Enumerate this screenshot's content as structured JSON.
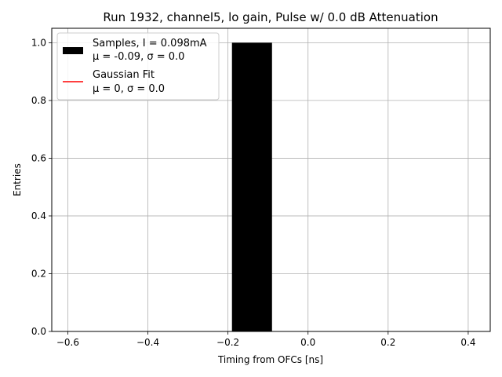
{
  "chart_data": {
    "type": "bar",
    "title": "Run 1932, channel5, lo gain, Pulse w/ 0.0 dB Attenuation",
    "xlabel": "Timing from OFCs [ns]",
    "ylabel": "Entries",
    "xlim": [
      -0.64,
      0.455
    ],
    "ylim": [
      0,
      1.05
    ],
    "grid": true,
    "xticks": [
      -0.6,
      -0.4,
      -0.2,
      0.0,
      0.2,
      0.4
    ],
    "xtick_labels": [
      "−0.6",
      "−0.4",
      "−0.2",
      "0.0",
      "0.2",
      "0.4"
    ],
    "yticks": [
      0.0,
      0.2,
      0.4,
      0.6,
      0.8,
      1.0
    ],
    "ytick_labels": [
      "0.0",
      "0.2",
      "0.4",
      "0.6",
      "0.8",
      "1.0"
    ],
    "bars": [
      {
        "x0": -0.19,
        "x1": -0.09,
        "value": 1.0
      }
    ],
    "fit_line": {
      "x": [
        0.0,
        0.0
      ],
      "y": [
        0.0,
        0.0
      ]
    },
    "legend": {
      "placement": "upper left",
      "entries": [
        {
          "line1": "Samples, I = 0.098mA",
          "line2": "μ = -0.09, σ = 0.0",
          "color": "#000000",
          "kind": "patch"
        },
        {
          "line1": "Gaussian Fit",
          "line2": "μ = 0, σ = 0.0",
          "color": "#e41a1c",
          "kind": "line"
        }
      ]
    },
    "colors": {
      "bar": "#000000",
      "fit": "#ff0000",
      "grid": "#b0b0b0"
    }
  }
}
